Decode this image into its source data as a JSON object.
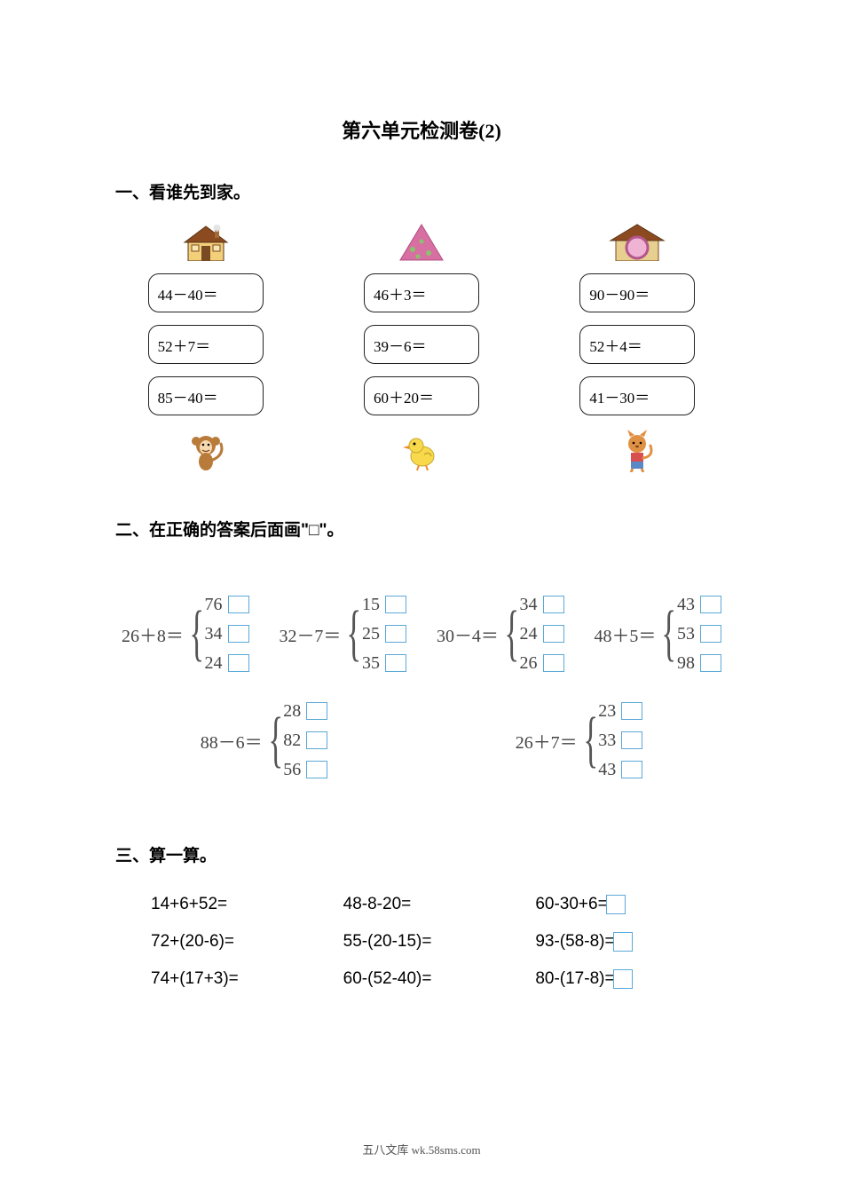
{
  "title": "第六单元检测卷(2)",
  "section1": {
    "heading": "一、看谁先到家。",
    "columns": [
      {
        "home_svg": "house1",
        "home_colors": {
          "roof": "#8c4a20",
          "wall": "#f3cf7a"
        },
        "equations": [
          "44－40＝",
          "52＋7＝",
          "85－40＝"
        ],
        "animal_svg": "monkey",
        "animal_colors": {
          "body": "#b97b3a",
          "face": "#f6d9b0"
        }
      },
      {
        "home_svg": "mountain",
        "home_colors": {
          "fill": "#d76fa2",
          "spots": "#8ac36e"
        },
        "equations": [
          "46＋3＝",
          "39－6＝",
          "60＋20＝"
        ],
        "animal_svg": "duck",
        "animal_colors": {
          "body": "#f7d94b",
          "beak": "#ec8f2e"
        }
      },
      {
        "home_svg": "house2",
        "home_colors": {
          "roof": "#8c4a20",
          "circle": "#efb3d4",
          "ring": "#b3568c"
        },
        "equations": [
          "90－90＝",
          "52＋4＝",
          "41－30＝"
        ],
        "animal_svg": "cat",
        "animal_colors": {
          "body": "#e19143",
          "pants": "#5a88c4",
          "shirt": "#d94f4f"
        }
      }
    ]
  },
  "section2": {
    "heading": "二、在正确的答案后面画\"□\"。",
    "problems": [
      {
        "expr": "26＋8＝",
        "options": [
          "76",
          "34",
          "24"
        ]
      },
      {
        "expr": "32－7＝",
        "options": [
          "15",
          "25",
          "35"
        ]
      },
      {
        "expr": "30－4＝",
        "options": [
          "34",
          "24",
          "26"
        ]
      },
      {
        "expr": "48＋5＝",
        "options": [
          "43",
          "53",
          "98"
        ]
      },
      {
        "expr": "88－6＝",
        "options": [
          "28",
          "82",
          "56"
        ]
      },
      {
        "expr": "26＋7＝",
        "options": [
          "23",
          "33",
          "43"
        ]
      }
    ],
    "checkbox_border_color": "#5ba9d8"
  },
  "section3": {
    "heading": "三、算一算。",
    "rows": [
      [
        "14+6+52=",
        "48-8-20=",
        "60-30+6="
      ],
      [
        "72+(20-6)=",
        "55-(20-15)=",
        "93-(58-8)="
      ],
      [
        "74+(17+3)=",
        "60-(52-40)=",
        "80-(17-8)="
      ]
    ],
    "end_box_cols": [
      2
    ],
    "end_box_border_color": "#5ba9d8"
  },
  "footer": "五八文库 wk.58sms.com"
}
